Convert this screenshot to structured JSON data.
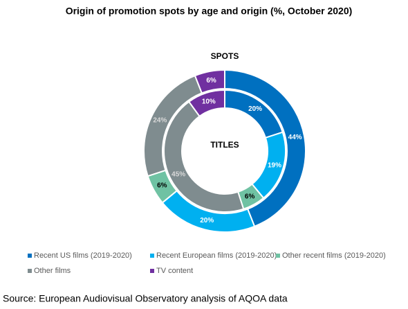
{
  "chart_data": {
    "type": "donut",
    "title": "Origin of promotion spots by age and origin (%, October 2020)",
    "categories": [
      "Recent US films (2019-2020)",
      "Recent European films (2019-2020)",
      "Other recent films (2019-2020)",
      "Other films",
      "TV content"
    ],
    "colors": [
      "#0070c0",
      "#00b0f0",
      "#6fc2a3",
      "#7f8c8f",
      "#7030a0"
    ],
    "series": [
      {
        "name": "SPOTS",
        "values": [
          44,
          20,
          6,
          24,
          6
        ],
        "value_labels": [
          "44%",
          "20%",
          "6%",
          "24%",
          "6%"
        ]
      },
      {
        "name": "TITLES",
        "values": [
          20,
          19,
          6,
          45,
          10
        ],
        "value_labels": [
          "20%",
          "19%",
          "6%",
          "45%",
          "10%"
        ]
      }
    ],
    "source": "Source: European Audiovisual Observatory analysis of AQOA data"
  }
}
